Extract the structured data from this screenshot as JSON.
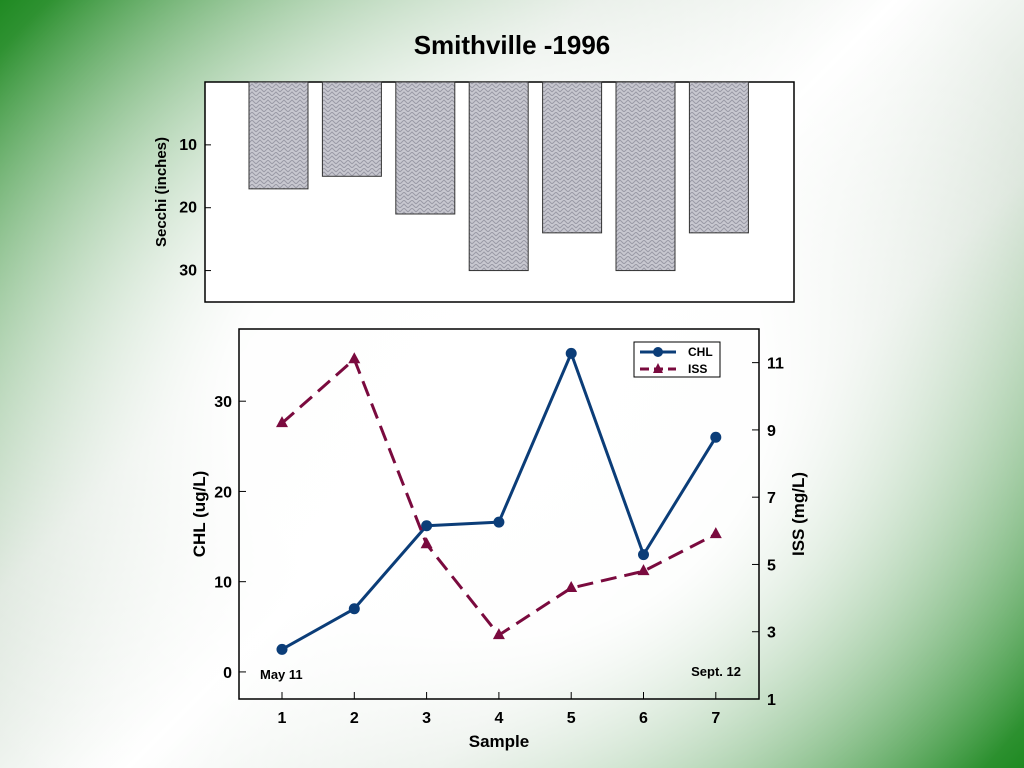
{
  "title": "Smithville -1996",
  "chart_data": [
    {
      "type": "bar",
      "categories": [
        "1",
        "2",
        "3",
        "4",
        "5",
        "6",
        "7"
      ],
      "values": [
        17,
        15,
        21,
        30,
        24,
        30,
        24
      ],
      "ylabel": "Secchi (inches)",
      "ylim": [
        0,
        35
      ],
      "y_inverted": true,
      "yticks": [
        10,
        20,
        30
      ],
      "color": "#c8c8d0"
    },
    {
      "type": "line",
      "x": [
        1,
        2,
        3,
        4,
        5,
        6,
        7
      ],
      "xlabel": "Sample",
      "xticks": [
        1,
        2,
        3,
        4,
        5,
        6,
        7
      ],
      "grid": false,
      "legend_position": "top-right",
      "left_axis": {
        "label": "CHL (ug/L)",
        "ylim": [
          -3,
          38
        ],
        "ticks": [
          0,
          10,
          20,
          30
        ]
      },
      "right_axis": {
        "label": "ISS (mg/L)",
        "ylim": [
          1,
          12
        ],
        "ticks": [
          1,
          3,
          5,
          7,
          9,
          11
        ]
      },
      "series": [
        {
          "name": "CHL",
          "axis": "left",
          "values": [
            2.5,
            7,
            16.2,
            16.6,
            35.3,
            13,
            26
          ],
          "color": "#0b3d78",
          "marker": "circle",
          "dash": false
        },
        {
          "name": "ISS",
          "axis": "right",
          "values": [
            9.2,
            11.1,
            5.6,
            2.9,
            4.3,
            4.8,
            5.9
          ],
          "color": "#7a0a3e",
          "marker": "triangle",
          "dash": true
        }
      ],
      "annotations": [
        {
          "text": "May 11",
          "anchor": "bottom-left"
        },
        {
          "text": "Sept. 12",
          "anchor": "bottom-right"
        }
      ]
    }
  ]
}
